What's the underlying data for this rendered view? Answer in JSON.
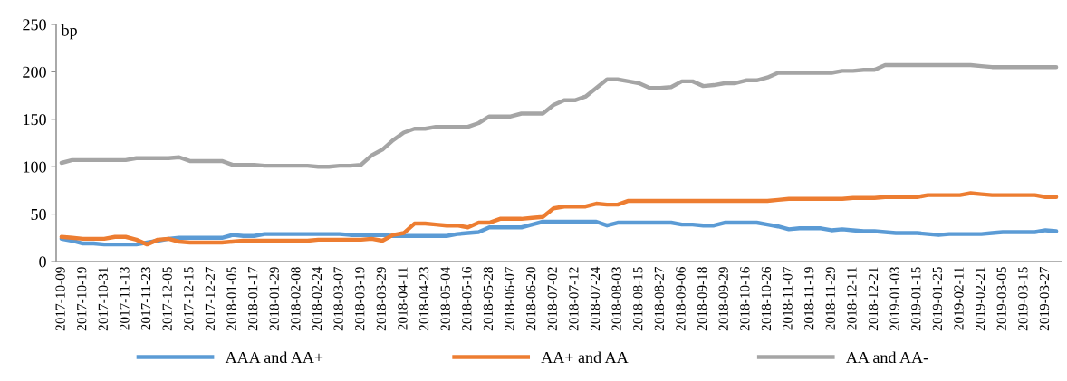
{
  "chart_data": {
    "type": "line",
    "ylabel": "bp",
    "ylim": [
      0,
      250
    ],
    "yticks": [
      0,
      50,
      100,
      150,
      200,
      250
    ],
    "grid": false,
    "legend": "bottom",
    "marker": "none",
    "line_style": "solid",
    "categories": [
      "2017-10-09",
      null,
      "2017-10-19",
      null,
      "2017-10-31",
      null,
      "2017-11-13",
      null,
      "2017-11-23",
      null,
      "2017-12-05",
      null,
      "2017-12-15",
      null,
      "2017-12-27",
      null,
      "2018-01-05",
      null,
      "2018-01-17",
      null,
      "2018-01-29",
      null,
      "2018-02-08",
      null,
      "2018-02-24",
      null,
      "2018-03-07",
      null,
      "2018-03-19",
      null,
      "2018-03-29",
      null,
      "2018-04-11",
      null,
      "2018-04-23",
      null,
      "2018-05-04",
      null,
      "2018-05-16",
      null,
      "2018-05-28",
      null,
      "2018-06-07",
      null,
      "2018-06-20",
      null,
      "2018-07-02",
      null,
      "2018-07-12",
      null,
      "2018-07-24",
      null,
      "2018-08-03",
      null,
      "2018-08-15",
      null,
      "2018-08-27",
      null,
      "2018-09-06",
      null,
      "2018-09-18",
      null,
      "2018-09-29",
      null,
      "2018-10-16",
      null,
      "2018-10-26",
      null,
      "2018-11-07",
      null,
      "2018-11-19",
      null,
      "2018-11-29",
      null,
      "2018-12-11",
      null,
      "2018-12-21",
      null,
      "2019-01-03",
      null,
      "2019-01-15",
      null,
      "2019-01-25",
      null,
      "2019-02-11",
      null,
      "2019-02-21",
      null,
      "2019-03-05",
      null,
      "2019-03-15",
      null,
      "2019-03-27",
      null
    ],
    "series": [
      {
        "name": "AAA and AA+",
        "color": "#5b9bd5",
        "values": [
          24,
          22,
          19,
          19,
          18,
          18,
          18,
          18,
          20,
          22,
          24,
          25,
          25,
          25,
          25,
          25,
          28,
          27,
          27,
          29,
          29,
          29,
          29,
          29,
          29,
          29,
          29,
          28,
          28,
          28,
          28,
          27,
          27,
          27,
          27,
          27,
          27,
          29,
          30,
          31,
          36,
          36,
          36,
          36,
          39,
          42,
          42,
          42,
          42,
          42,
          42,
          38,
          41,
          41,
          41,
          41,
          41,
          41,
          39,
          39,
          38,
          38,
          41,
          41,
          41,
          41,
          39,
          37,
          34,
          35,
          35,
          35,
          33,
          34,
          33,
          32,
          32,
          31,
          30,
          30,
          30,
          29,
          28,
          29,
          29,
          29,
          29,
          30,
          31,
          31,
          31,
          31,
          33,
          32
        ]
      },
      {
        "name": "AA+ and AA",
        "color": "#ed7d31",
        "values": [
          26,
          25,
          24,
          24,
          24,
          26,
          26,
          23,
          18,
          23,
          24,
          21,
          20,
          20,
          20,
          20,
          21,
          22,
          22,
          22,
          22,
          22,
          22,
          22,
          23,
          23,
          23,
          23,
          23,
          24,
          22,
          28,
          30,
          40,
          40,
          39,
          38,
          38,
          36,
          41,
          41,
          45,
          45,
          45,
          46,
          47,
          56,
          58,
          58,
          58,
          61,
          60,
          60,
          64,
          64,
          64,
          64,
          64,
          64,
          64,
          64,
          64,
          64,
          64,
          64,
          64,
          64,
          65,
          66,
          66,
          66,
          66,
          66,
          66,
          67,
          67,
          67,
          68,
          68,
          68,
          68,
          70,
          70,
          70,
          70,
          72,
          71,
          70,
          70,
          70,
          70,
          70,
          68,
          68
        ]
      },
      {
        "name": "AA and AA-",
        "color": "#a5a5a5",
        "values": [
          104,
          107,
          107,
          107,
          107,
          107,
          107,
          109,
          109,
          109,
          109,
          110,
          106,
          106,
          106,
          106,
          102,
          102,
          102,
          101,
          101,
          101,
          101,
          101,
          100,
          100,
          101,
          101,
          102,
          112,
          118,
          128,
          136,
          140,
          140,
          142,
          142,
          142,
          142,
          146,
          153,
          153,
          153,
          156,
          156,
          156,
          165,
          170,
          170,
          174,
          183,
          192,
          192,
          190,
          188,
          183,
          183,
          184,
          190,
          190,
          185,
          186,
          188,
          188,
          191,
          191,
          194,
          199,
          199,
          199,
          199,
          199,
          199,
          201,
          201,
          202,
          202,
          207,
          207,
          207,
          207,
          207,
          207,
          207,
          207,
          207,
          206,
          205,
          205,
          205,
          205,
          205,
          205,
          205
        ]
      }
    ]
  }
}
